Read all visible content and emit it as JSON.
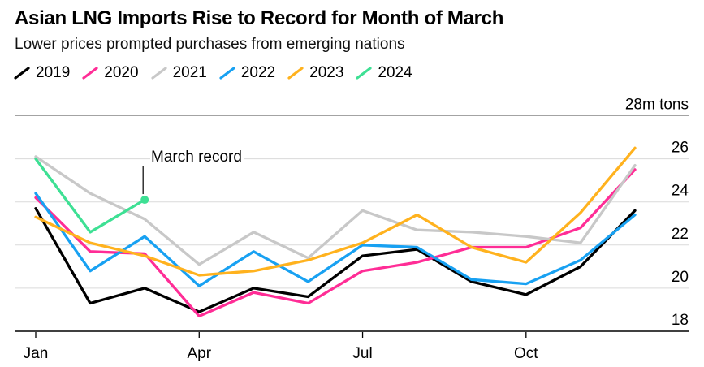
{
  "header": {
    "title": "Asian LNG Imports Rise to Record for Month of March",
    "subtitle": "Lower prices prompted purchases from emerging nations"
  },
  "legend": [
    {
      "label": "2019",
      "color": "#000000"
    },
    {
      "label": "2020",
      "color": "#ff2d96"
    },
    {
      "label": "2021",
      "color": "#c8c8c8"
    },
    {
      "label": "2022",
      "color": "#18a1f2"
    },
    {
      "label": "2023",
      "color": "#ffb21e"
    },
    {
      "label": "2024",
      "color": "#3ee094"
    }
  ],
  "chart_data": {
    "type": "line",
    "unit_label": "28m tons",
    "months": [
      "Jan",
      "Feb",
      "Mar",
      "Apr",
      "May",
      "Jun",
      "Jul",
      "Aug",
      "Sep",
      "Oct",
      "Nov",
      "Dec"
    ],
    "x_tick_labels": [
      "Jan",
      "Apr",
      "Jul",
      "Oct"
    ],
    "x_tick_month_indices": [
      0,
      3,
      6,
      9
    ],
    "ylim": [
      18,
      28
    ],
    "yticks": [
      18,
      20,
      22,
      24,
      26,
      28
    ],
    "ytick_labels": [
      "18",
      "20",
      "22",
      "24",
      "26"
    ],
    "grid": "horizontal",
    "legend_position": "top",
    "series": [
      {
        "name": "2019",
        "color": "#000000",
        "values": [
          23.7,
          19.3,
          20.0,
          18.9,
          20.0,
          19.6,
          21.5,
          21.8,
          20.3,
          19.7,
          21.0,
          23.6
        ]
      },
      {
        "name": "2020",
        "color": "#ff2d96",
        "values": [
          24.2,
          21.7,
          21.6,
          18.7,
          19.8,
          19.3,
          20.8,
          21.2,
          21.9,
          21.9,
          22.8,
          25.5
        ]
      },
      {
        "name": "2021",
        "color": "#c8c8c8",
        "values": [
          26.1,
          24.4,
          23.2,
          21.1,
          22.6,
          21.4,
          23.6,
          22.7,
          22.6,
          22.4,
          22.1,
          25.7
        ]
      },
      {
        "name": "2022",
        "color": "#18a1f2",
        "values": [
          24.4,
          20.8,
          22.4,
          20.1,
          21.7,
          20.3,
          22.0,
          21.9,
          20.4,
          20.2,
          21.3,
          23.4
        ]
      },
      {
        "name": "2023",
        "color": "#ffb21e",
        "values": [
          23.3,
          22.1,
          21.5,
          20.6,
          20.8,
          21.3,
          22.1,
          23.4,
          21.9,
          21.2,
          23.5,
          26.5
        ]
      },
      {
        "name": "2024",
        "color": "#3ee094",
        "marker_on_last_point": true,
        "values": [
          26.0,
          22.6,
          24.1
        ]
      }
    ],
    "annotation": {
      "text": "March record",
      "series": "2024",
      "month": "Mar",
      "value": 24.1
    }
  },
  "style_colors": {
    "grid": "#dadada",
    "grid_top": "#a3a3a3",
    "axis": "#000000",
    "background": "#ffffff"
  }
}
